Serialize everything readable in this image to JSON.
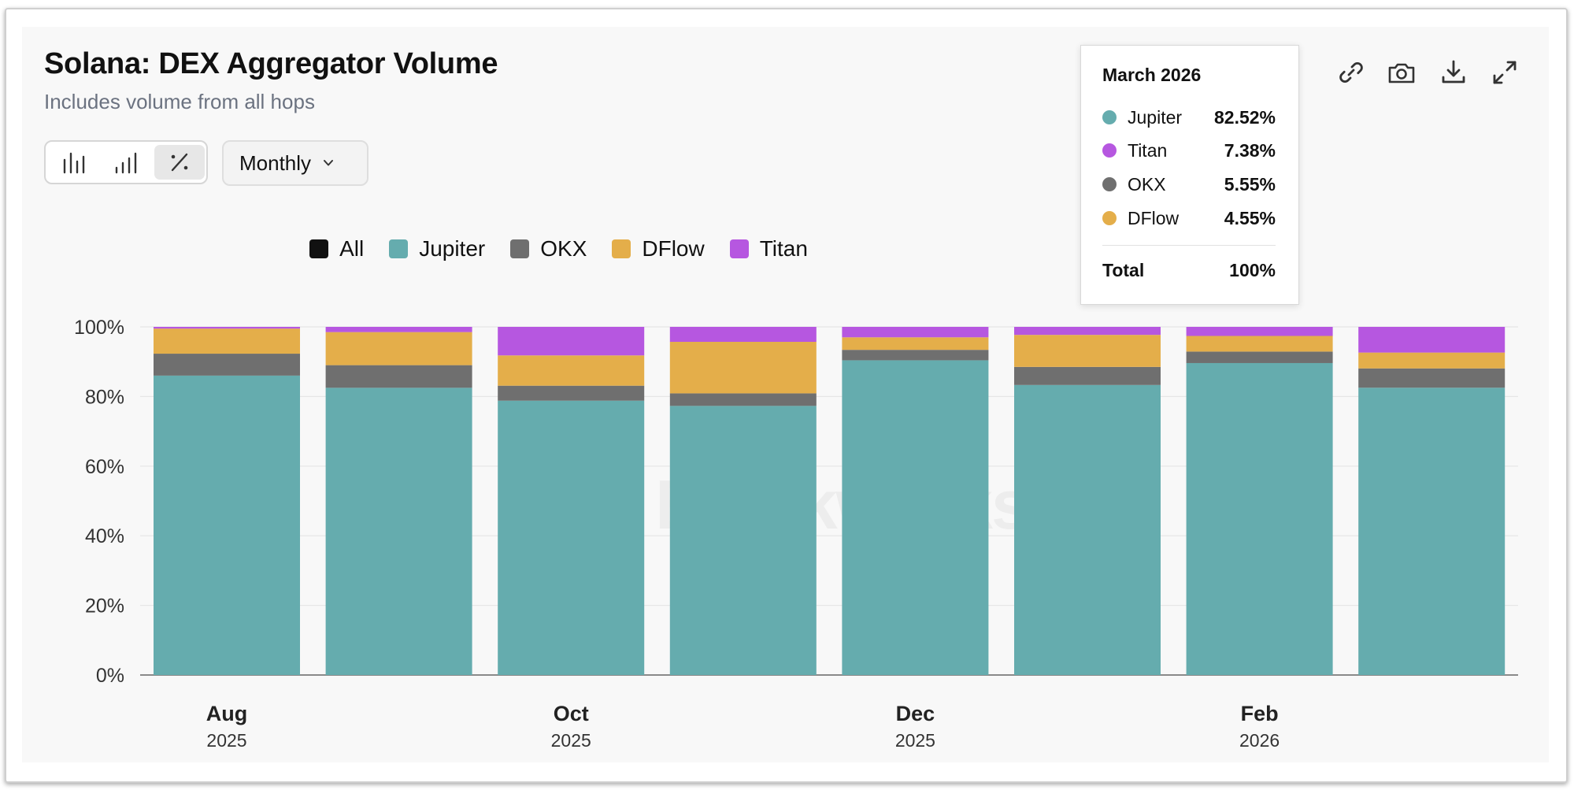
{
  "header": {
    "title": "Solana: DEX Aggregator Volume",
    "subtitle": "Includes volume from all hops"
  },
  "controls": {
    "view_modes": [
      "bar-chart-icon",
      "stacked-bar-icon",
      "percent-icon"
    ],
    "active_view": "percent-icon",
    "period": "Monthly"
  },
  "actions": [
    "link-icon",
    "camera-icon",
    "download-icon",
    "expand-icon"
  ],
  "tooltip": {
    "title": "March 2026",
    "rows": [
      {
        "name": "Jupiter",
        "value": "82.52%",
        "color": "#65acae"
      },
      {
        "name": "Titan",
        "value": "7.38%",
        "color": "#b657e0"
      },
      {
        "name": "OKX",
        "value": "5.55%",
        "color": "#6f6f6f"
      },
      {
        "name": "DFlow",
        "value": "4.55%",
        "color": "#e4ae4a"
      }
    ],
    "total_label": "Total",
    "total_value": "100%"
  },
  "watermark": "Blockworks",
  "chart_data": {
    "type": "bar",
    "stacked": true,
    "title": "Solana: DEX Aggregator Volume",
    "subtitle": "Includes volume from all hops",
    "categories": [
      "Aug 2025",
      "Sep 2025",
      "Oct 2025",
      "Nov 2025",
      "Dec 2025",
      "Jan 2026",
      "Feb 2026",
      "Mar 2026"
    ],
    "x_tick_labels": [
      {
        "month": "Aug",
        "year": "2025",
        "index": 0
      },
      {
        "month": "Oct",
        "year": "2025",
        "index": 2
      },
      {
        "month": "Dec",
        "year": "2025",
        "index": 4
      },
      {
        "month": "Feb",
        "year": "2026",
        "index": 6
      }
    ],
    "legend": [
      {
        "name": "All",
        "color": "#111111"
      },
      {
        "name": "Jupiter",
        "color": "#65acae"
      },
      {
        "name": "OKX",
        "color": "#6f6f6f"
      },
      {
        "name": "DFlow",
        "color": "#e4ae4a"
      },
      {
        "name": "Titan",
        "color": "#b657e0"
      }
    ],
    "series": [
      {
        "name": "Jupiter",
        "color": "#65acae",
        "values": [
          86.0,
          82.5,
          78.8,
          77.3,
          90.4,
          83.3,
          89.6,
          82.52
        ]
      },
      {
        "name": "OKX",
        "color": "#6f6f6f",
        "values": [
          6.3,
          6.5,
          4.3,
          3.6,
          3.0,
          5.2,
          3.3,
          5.55
        ]
      },
      {
        "name": "DFlow",
        "color": "#e4ae4a",
        "values": [
          7.2,
          9.5,
          8.7,
          14.8,
          3.6,
          9.2,
          4.5,
          4.55
        ]
      },
      {
        "name": "Titan",
        "color": "#b657e0",
        "values": [
          0.5,
          1.5,
          8.2,
          4.3,
          3.0,
          2.3,
          2.6,
          7.38
        ]
      }
    ],
    "y_ticks": [
      0,
      20,
      40,
      60,
      80,
      100
    ],
    "y_tick_labels": [
      "0%",
      "20%",
      "40%",
      "60%",
      "80%",
      "100%"
    ],
    "ylim": [
      0,
      100
    ],
    "xlabel": "",
    "ylabel": "",
    "grid": true,
    "legend_position": "top-center"
  }
}
